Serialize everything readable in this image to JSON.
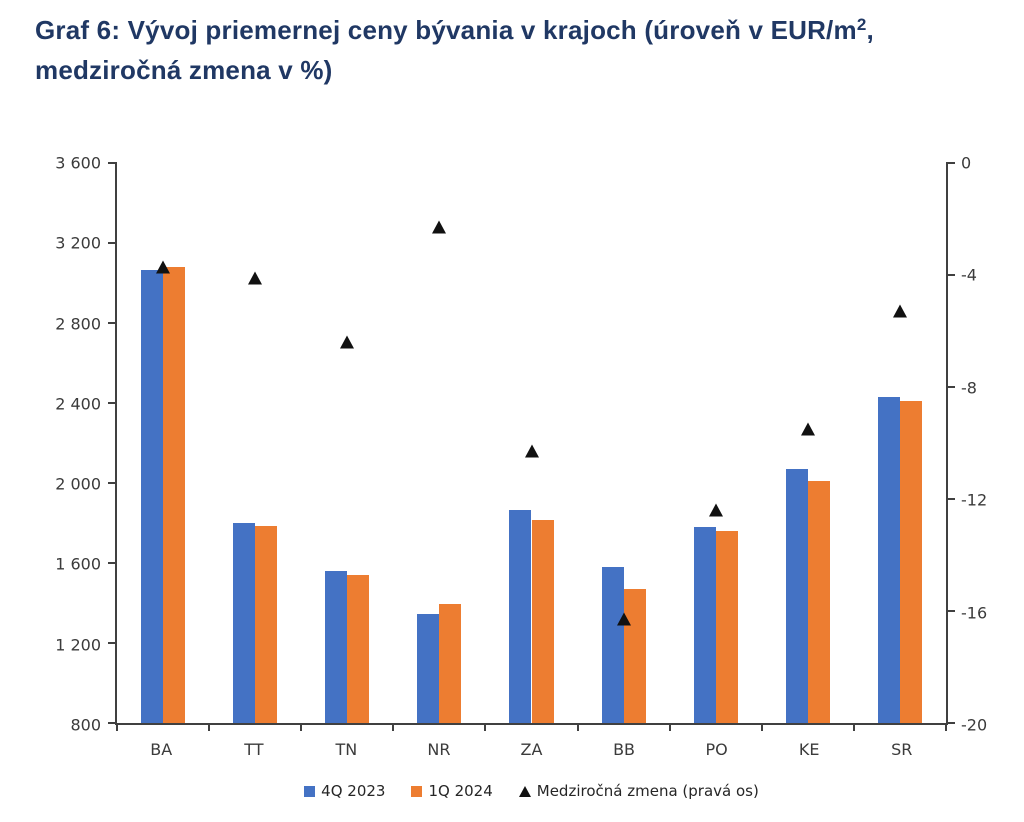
{
  "title": {
    "line1_pre": "Graf 6: Vývoj priemernej ceny bývania v krajoch (úroveň v EUR/m",
    "superscript": "2",
    "line1_post": ",",
    "line2": "medziročná zmena v %)"
  },
  "colors": {
    "title": "#203864",
    "bar_4q_2023": "#4472c4",
    "bar_1q_2024": "#ed7d31",
    "marker": "#111111",
    "axis_line": "#404040",
    "axis_text": "#3b3b3b"
  },
  "chart_data": {
    "type": "bar",
    "title": "Graf 6: Vývoj priemernej ceny bývania v krajoch (úroveň v EUR/m2, medziročná zmena v %)",
    "categories": [
      "BA",
      "TT",
      "TN",
      "NR",
      "ZA",
      "BB",
      "PO",
      "KE",
      "SR"
    ],
    "series": [
      {
        "name": "4Q 2023",
        "type": "bar",
        "marker": "square",
        "color": "#4472c4",
        "axis": "left",
        "values": [
          3065,
          1800,
          1560,
          1345,
          1865,
          1580,
          1780,
          2070,
          2430
        ]
      },
      {
        "name": "1Q 2024",
        "type": "bar",
        "marker": "square",
        "color": "#ed7d31",
        "axis": "left",
        "values": [
          3080,
          1785,
          1540,
          1395,
          1815,
          1470,
          1760,
          2010,
          2410
        ]
      },
      {
        "name": "Medziročná zmena (pravá os)",
        "type": "triangle-marker",
        "marker": "triangle",
        "color": "#111111",
        "axis": "right",
        "values": [
          -3.7,
          -4.1,
          -6.4,
          -2.3,
          -10.3,
          -16.3,
          -12.4,
          -9.5,
          -5.3
        ]
      }
    ],
    "left_axis": {
      "min": 800,
      "max": 3600,
      "step": 400,
      "tick_values": [
        3600,
        3200,
        2800,
        2400,
        2000,
        1600,
        1200,
        800
      ],
      "tick_labels": [
        "3 600",
        "3 200",
        "2 800",
        "2 400",
        "2 000",
        "1 600",
        "1 200",
        "800"
      ]
    },
    "right_axis": {
      "min": -20,
      "max": 0,
      "step": 4,
      "tick_values": [
        0,
        -4,
        -8,
        -12,
        -16,
        -20
      ],
      "tick_labels": [
        "0",
        "-4",
        "-8",
        "-12",
        "-16",
        "-20"
      ]
    },
    "grid": false,
    "legend_position": "bottom"
  }
}
